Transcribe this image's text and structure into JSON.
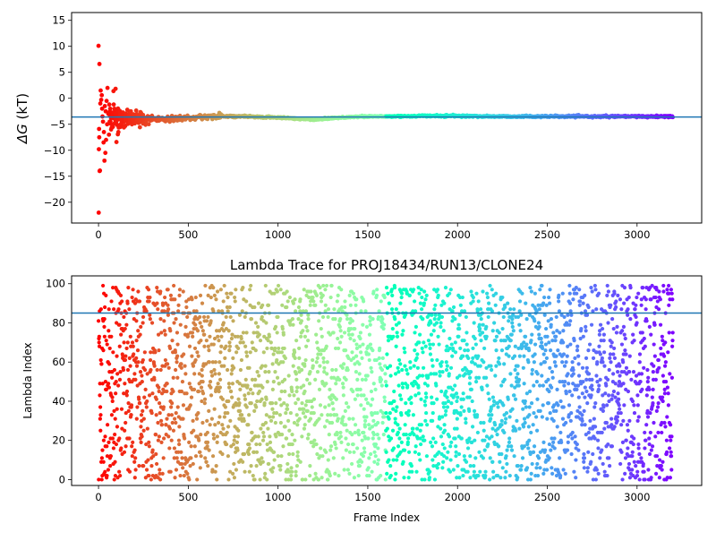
{
  "chart_data": [
    {
      "type": "scatter",
      "title": "",
      "xlabel": "",
      "ylabel_symbol": "ΔG",
      "ylabel_unit": " (kT)",
      "xlim": [
        -150,
        3360
      ],
      "ylim": [
        -24,
        16.5
      ],
      "xticks": [
        0,
        500,
        1000,
        1500,
        2000,
        2500,
        3000
      ],
      "yticks": [
        -20,
        -15,
        -10,
        -5,
        0,
        5,
        10,
        15
      ],
      "xtick_labels": [
        "0",
        "500",
        "1000",
        "1500",
        "2000",
        "2500",
        "3000"
      ],
      "ytick_labels": [
        "−20",
        "−15",
        "−10",
        "−5",
        "0",
        "5",
        "10",
        "15"
      ],
      "hline": {
        "y": -3.6,
        "color": "#1f77b4"
      },
      "colormap": "rainbow (red at frame 0 → violet at last frame)",
      "n_frames": 3200,
      "series_description": "Running free-energy estimate per frame; scattered early values converging to about -3.6 kT",
      "points_early": [
        [
          0,
          10.1
        ],
        [
          5,
          6.6
        ],
        [
          3,
          -5.9
        ],
        [
          4,
          -7.5
        ],
        [
          2,
          -9.8
        ],
        [
          6,
          -14
        ],
        [
          8,
          -13.9
        ],
        [
          1,
          -22
        ],
        [
          10,
          -1
        ],
        [
          12,
          1.5
        ],
        [
          15,
          -0.3
        ],
        [
          18,
          0.6
        ],
        [
          20,
          -2
        ],
        [
          22,
          -3.5
        ],
        [
          25,
          -4.5
        ],
        [
          28,
          -8.5
        ],
        [
          30,
          -6.5
        ],
        [
          33,
          -12
        ],
        [
          35,
          -1.5
        ],
        [
          38,
          -10.5
        ],
        [
          40,
          -2.5
        ],
        [
          42,
          -8
        ],
        [
          45,
          -0.5
        ],
        [
          48,
          -5
        ],
        [
          50,
          2
        ],
        [
          55,
          -3
        ],
        [
          58,
          -7
        ],
        [
          60,
          -1.2
        ],
        [
          62,
          -4.5
        ],
        [
          65,
          -2
        ],
        [
          70,
          -6
        ],
        [
          75,
          -3.5
        ],
        [
          80,
          -5.5
        ],
        [
          85,
          -2.8
        ],
        [
          90,
          -4.8
        ],
        [
          95,
          -3
        ],
        [
          100,
          -4.2
        ]
      ],
      "curve": [
        [
          100,
          -3.8
        ],
        [
          200,
          -3.9
        ],
        [
          300,
          -4.1
        ],
        [
          400,
          -3.9
        ],
        [
          500,
          -3.8
        ],
        [
          650,
          -3.4
        ],
        [
          800,
          -3.5
        ],
        [
          900,
          -3.6
        ],
        [
          1000,
          -3.7
        ],
        [
          1100,
          -3.9
        ],
        [
          1200,
          -4.1
        ],
        [
          1300,
          -3.8
        ],
        [
          1400,
          -3.6
        ],
        [
          1500,
          -3.5
        ],
        [
          1600,
          -3.5
        ],
        [
          1800,
          -3.4
        ],
        [
          2000,
          -3.4
        ],
        [
          2200,
          -3.5
        ],
        [
          2500,
          -3.5
        ],
        [
          2800,
          -3.5
        ],
        [
          3000,
          -3.5
        ],
        [
          3200,
          -3.5
        ]
      ]
    },
    {
      "type": "scatter",
      "title": "Lambda Trace for PROJ18434/RUN13/CLONE24",
      "xlabel": "Frame Index",
      "ylabel": "Lambda Index",
      "xlim": [
        -150,
        3360
      ],
      "ylim": [
        -3,
        104
      ],
      "xticks": [
        0,
        500,
        1000,
        1500,
        2000,
        2500,
        3000
      ],
      "yticks": [
        0,
        20,
        40,
        60,
        80,
        100
      ],
      "xtick_labels": [
        "0",
        "500",
        "1000",
        "1500",
        "2000",
        "2500",
        "3000"
      ],
      "ytick_labels": [
        "0",
        "20",
        "40",
        "60",
        "80",
        "100"
      ],
      "hline": {
        "y": 85,
        "color": "#1f77b4"
      },
      "colormap": "rainbow (red at frame 0 → violet at last frame)",
      "n_frames": 3200,
      "lambda_range": [
        0,
        99
      ],
      "series_description": "Lambda index visited at each frame, spread nearly uniformly between 0 and 99"
    }
  ]
}
